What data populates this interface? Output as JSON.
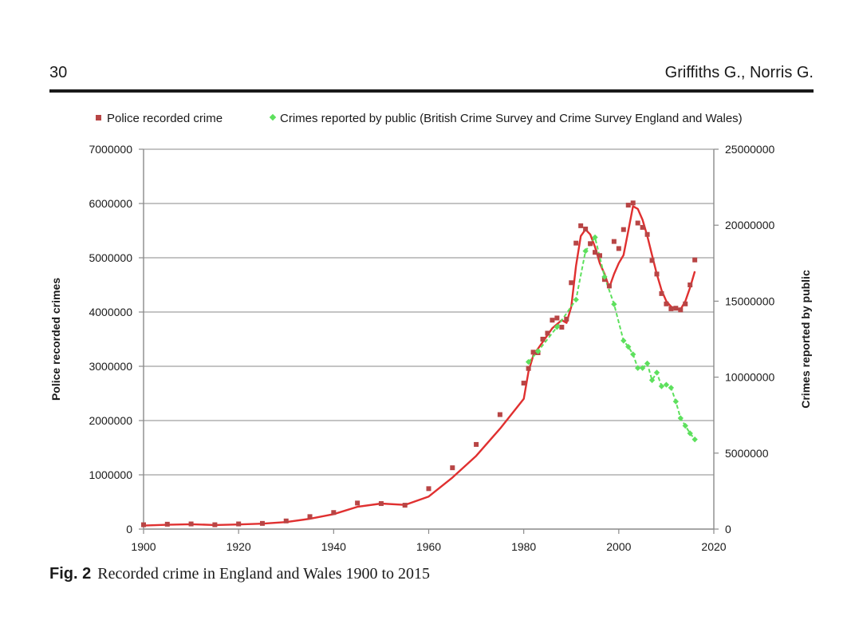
{
  "header": {
    "page_number": "30",
    "authors": "Griffiths G., Norris G."
  },
  "caption": {
    "label": "Fig. 2",
    "text": "Recorded crime in England and Wales 1900 to 2015"
  },
  "chart_data": {
    "type": "scatter",
    "title": "",
    "xlabel": "",
    "ylabel": "Police recorded crimes",
    "y2label": "Crimes reported by public",
    "xlim": [
      1900,
      2020
    ],
    "ylim": [
      0,
      7000000
    ],
    "y2lim": [
      0,
      25000000
    ],
    "x_ticks": [
      1900,
      1920,
      1940,
      1960,
      1980,
      2000,
      2020
    ],
    "y_ticks": [
      0,
      1000000,
      2000000,
      3000000,
      4000000,
      5000000,
      6000000,
      7000000
    ],
    "y2_ticks": [
      0,
      5000000,
      10000000,
      15000000,
      20000000,
      25000000
    ],
    "grid": true,
    "legend_position": "top",
    "colors": {
      "police": "#b84545",
      "police_trend": "#e03030",
      "public": "#5de05d",
      "grid": "#b0b0b0",
      "axis": "#8a8a8a"
    },
    "series": [
      {
        "name": "Police recorded crime",
        "axis": "left",
        "marker": "square",
        "x": [
          1900,
          1905,
          1910,
          1915,
          1920,
          1925,
          1930,
          1935,
          1940,
          1945,
          1950,
          1955,
          1960,
          1965,
          1970,
          1975,
          1980,
          1981,
          1982,
          1983,
          1984,
          1985,
          1986,
          1987,
          1988,
          1989,
          1990,
          1991,
          1992,
          1993,
          1994,
          1995,
          1996,
          1997,
          1998,
          1999,
          2000,
          2001,
          2002,
          2003,
          2004,
          2005,
          2006,
          2007,
          2008,
          2009,
          2010,
          2011,
          2012,
          2013,
          2014,
          2015,
          2016
        ],
        "values": [
          80000,
          90000,
          95000,
          80000,
          95000,
          105000,
          150000,
          230000,
          305000,
          480000,
          470000,
          440000,
          745000,
          1130000,
          1560000,
          2110000,
          2690000,
          2960000,
          3260000,
          3250000,
          3500000,
          3610000,
          3850000,
          3890000,
          3720000,
          3870000,
          4540000,
          5270000,
          5590000,
          5530000,
          5260000,
          5100000,
          5040000,
          4600000,
          4480000,
          5300000,
          5170000,
          5520000,
          5970000,
          6010000,
          5640000,
          5560000,
          5430000,
          4950000,
          4700000,
          4340000,
          4150000,
          4060000,
          4070000,
          4040000,
          4150000,
          4500000,
          4960000
        ]
      },
      {
        "name": "Crimes reported by public (British Crime Survey and Crime Survey England and Wales)",
        "axis": "right",
        "marker": "diamond",
        "x": [
          1981,
          1983,
          1987,
          1991,
          1993,
          1995,
          1997,
          1999,
          2001,
          2002,
          2003,
          2004,
          2005,
          2006,
          2007,
          2008,
          2009,
          2010,
          2011,
          2012,
          2013,
          2014,
          2015,
          2016
        ],
        "values": [
          11000000,
          11700000,
          13300000,
          15100000,
          18300000,
          19200000,
          16600000,
          14800000,
          12400000,
          12000000,
          11500000,
          10600000,
          10600000,
          10900000,
          9800000,
          10300000,
          9400000,
          9500000,
          9300000,
          8400000,
          7300000,
          6800000,
          6300000,
          5900000
        ]
      },
      {
        "name": "Police recorded crime trend",
        "axis": "left",
        "marker": "line",
        "x": [
          1900,
          1905,
          1910,
          1915,
          1920,
          1925,
          1930,
          1935,
          1940,
          1945,
          1950,
          1955,
          1960,
          1965,
          1970,
          1975,
          1980,
          1981,
          1982,
          1984,
          1986,
          1988,
          1989,
          1990,
          1991,
          1992,
          1993,
          1994,
          1995,
          1996,
          1997,
          1998,
          1999,
          2000,
          2001,
          2002,
          2003,
          2004,
          2005,
          2006,
          2007,
          2008,
          2009,
          2010,
          2011,
          2012,
          2013,
          2014,
          2015,
          2016
        ],
        "values": [
          65000,
          80000,
          90000,
          75000,
          85000,
          100000,
          130000,
          190000,
          275000,
          410000,
          470000,
          445000,
          600000,
          950000,
          1350000,
          1850000,
          2400000,
          2900000,
          3200000,
          3450000,
          3700000,
          3850000,
          3800000,
          4100000,
          4850000,
          5400000,
          5520000,
          5430000,
          5200000,
          4900000,
          4700000,
          4450000,
          4700000,
          4900000,
          5050000,
          5500000,
          5950000,
          5900000,
          5700000,
          5400000,
          5050000,
          4700000,
          4400000,
          4200000,
          4100000,
          4050000,
          4050000,
          4200000,
          4450000,
          4750000
        ]
      },
      {
        "name": "Crimes reported by public trend",
        "axis": "right",
        "marker": "dashed-line",
        "x": [
          1981,
          1983,
          1987,
          1991,
          1993,
          1995,
          1997,
          1999,
          2001,
          2002,
          2003,
          2004,
          2005,
          2006,
          2007,
          2008,
          2009,
          2010,
          2011,
          2012,
          2013,
          2014,
          2015,
          2016
        ],
        "values": [
          11000000,
          11700000,
          13300000,
          15100000,
          18300000,
          19200000,
          16600000,
          14800000,
          12400000,
          12000000,
          11500000,
          10600000,
          10600000,
          10900000,
          9800000,
          10300000,
          9400000,
          9500000,
          9300000,
          8400000,
          7300000,
          6800000,
          6300000,
          5900000
        ]
      }
    ],
    "legend": [
      "Police recorded crime",
      "Crimes reported by public (British Crime Survey and Crime Survey England and Wales)"
    ]
  }
}
